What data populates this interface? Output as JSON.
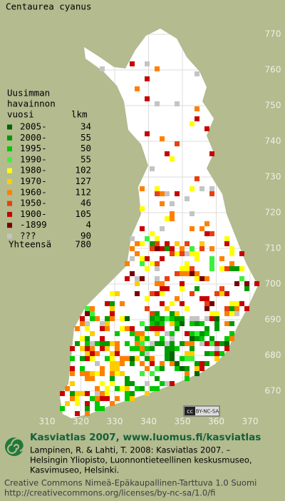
{
  "title": "Centaurea cyanus",
  "legend": {
    "heading": [
      "Uusimman",
      "havainnon",
      "vuosi"
    ],
    "count_heading": "lkm",
    "rows": [
      {
        "label": "2005-",
        "count": 34,
        "color": "#006400"
      },
      {
        "label": "2000-",
        "count": 55,
        "color": "#009a00"
      },
      {
        "label": "1995-",
        "count": 50,
        "color": "#00c800"
      },
      {
        "label": "1990-",
        "count": 55,
        "color": "#3cf03c"
      },
      {
        "label": "1980-",
        "count": 102,
        "color": "#ffff00"
      },
      {
        "label": "1970-",
        "count": 127,
        "color": "#ffcc00"
      },
      {
        "label": "1960-",
        "count": 112,
        "color": "#ff8000"
      },
      {
        "label": "1950-",
        "count": 46,
        "color": "#e84010"
      },
      {
        "label": "1900-",
        "count": 105,
        "color": "#c80000"
      },
      {
        "label": "-1899",
        "count": 4,
        "color": "#780000"
      },
      {
        "label": "???",
        "count": 90,
        "color": "#c4c4c4"
      }
    ],
    "total_label": "Yhteensä",
    "total": 780
  },
  "map": {
    "northing": [
      770,
      760,
      750,
      740,
      730,
      720,
      710,
      700,
      690,
      680,
      670
    ],
    "easting": [
      310,
      320,
      330,
      340,
      350,
      360,
      370
    ],
    "badge": [
      "cc",
      "BY-NC-SA"
    ]
  },
  "footer": {
    "site": "Kasviatlas 2007, www.luomus.fi/kasviatlas",
    "citation": [
      "Lampinen, R. & Lahti, T. 2008: Kasviatlas 2007. –",
      "Helsingin Yliopisto, Luonnontieteellinen keskusmuseo,",
      "Kasvimuseo, Helsinki."
    ],
    "license": [
      "Creative Commons Nimeä-Epäkaupallinen-Tarttuva 1.0 Suomi",
      "http://creativecommons.org/licenses/by-nc-sa/1.0/fi"
    ]
  }
}
